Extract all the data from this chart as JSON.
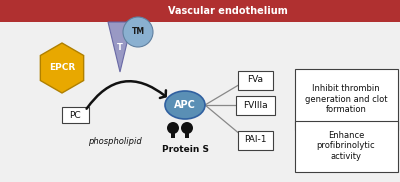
{
  "bg_color": "#f0f0f0",
  "endothelium_color": "#b03030",
  "endothelium_label": "Vascular endothelium",
  "epcr_color": "#e8a800",
  "epcr_label": "EPCR",
  "tm_color": "#8ab0d0",
  "tm_label": "TM",
  "t_color": "#9090c0",
  "t_label": "T",
  "apc_color": "#5a8fb5",
  "apc_label": "APC",
  "pc_label": "PC",
  "phospholipid_label": "phospholipid",
  "proteins_label": "Protein S",
  "fva_label": "FVa",
  "fviiia_label": "FVIIIa",
  "pai1_label": "PAI-1",
  "inhibit_label": "Inhibit thrombin\ngeneration and clot\nformation",
  "enhance_label": "Enhance\nprofibrinolytic\nactivity",
  "fig_w": 4.0,
  "fig_h": 1.82,
  "dpi": 100
}
